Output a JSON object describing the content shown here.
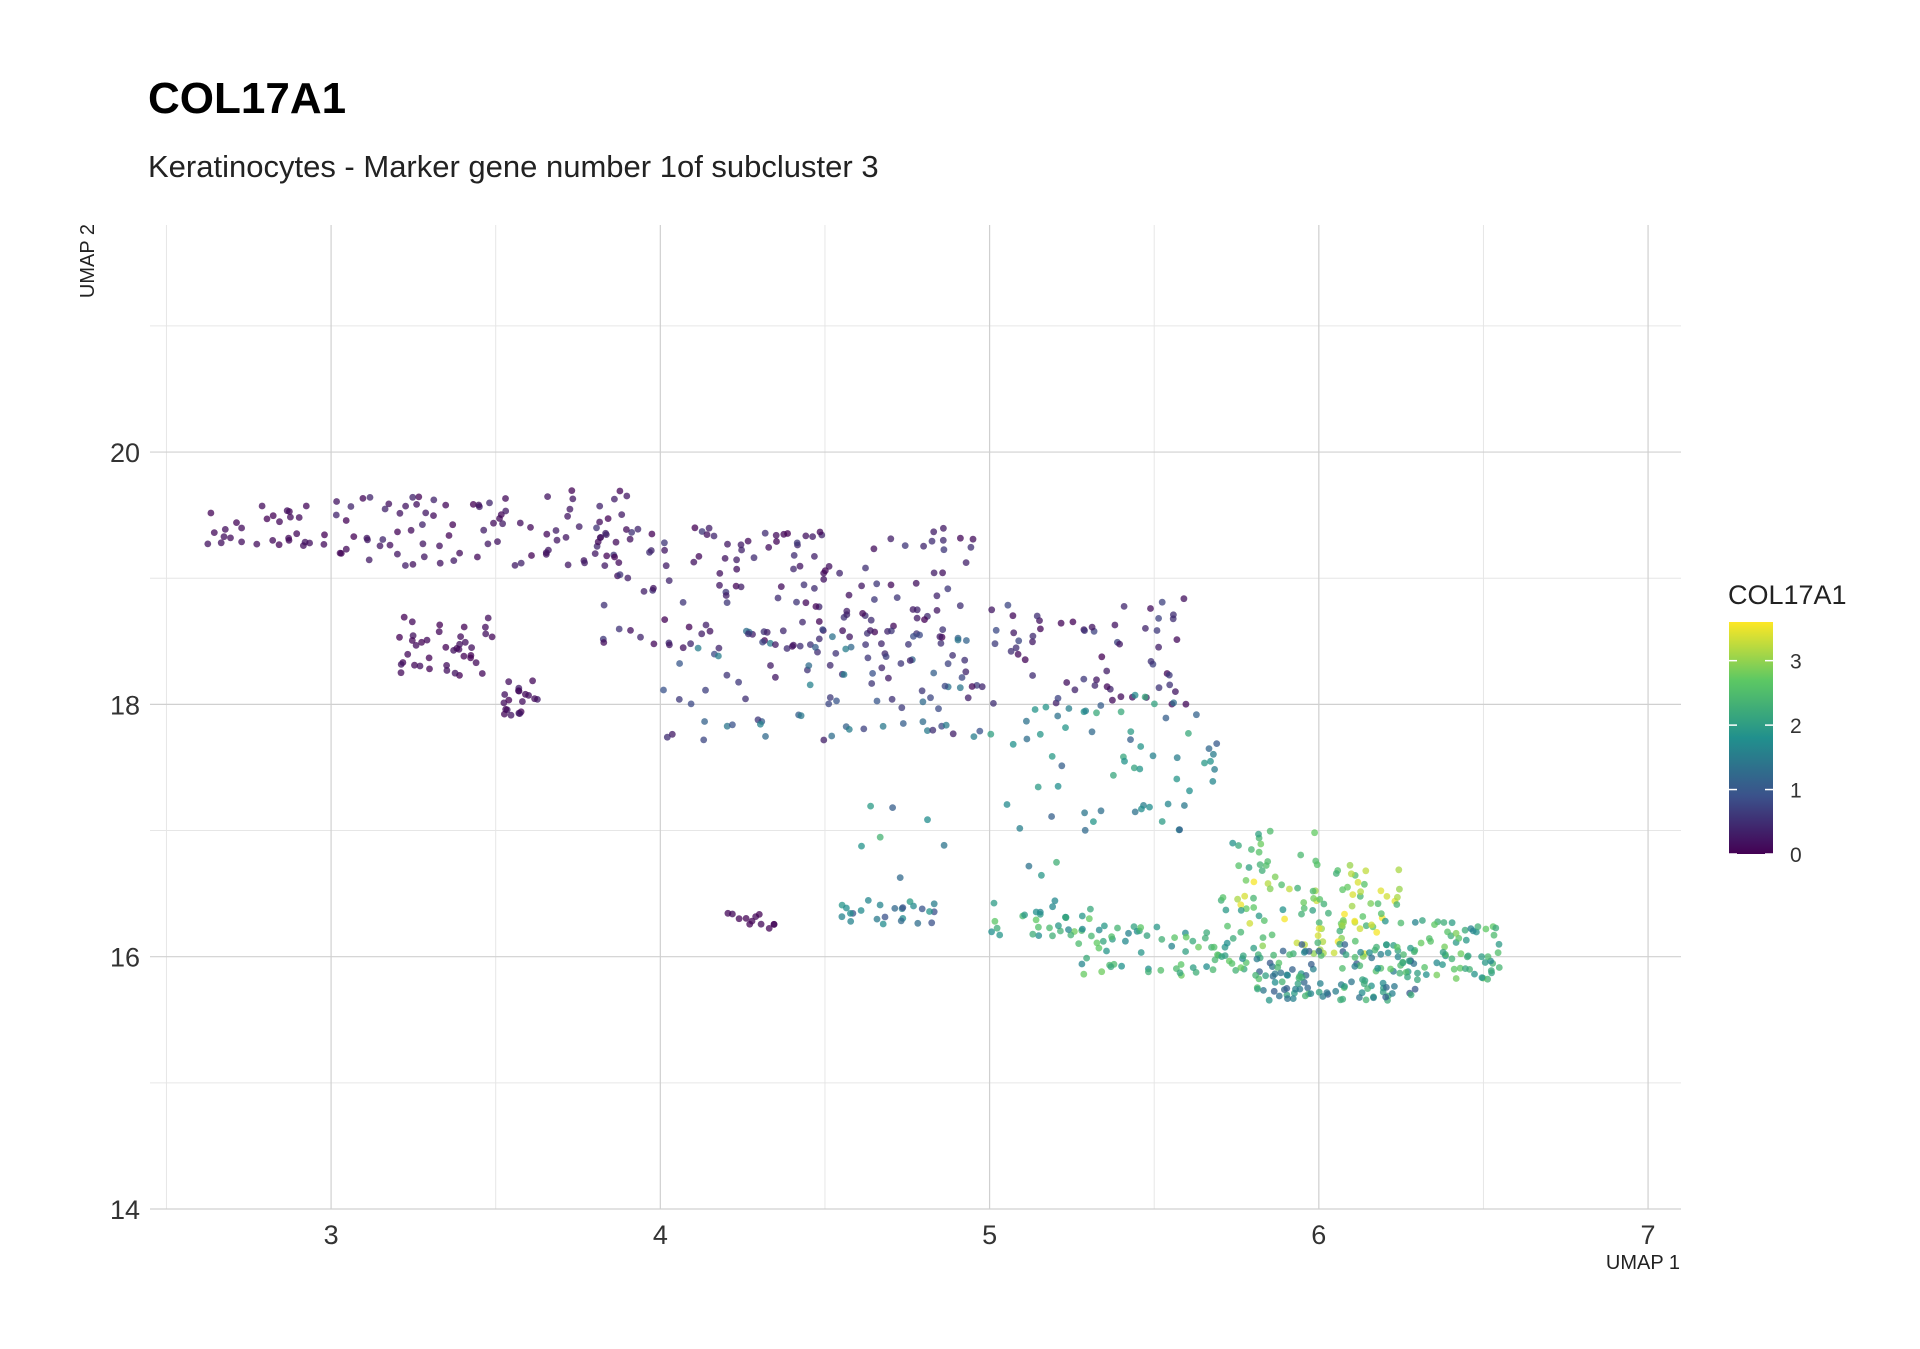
{
  "chart_data": {
    "type": "scatter",
    "title": "COL17A1",
    "subtitle": "Keratinocytes - Marker gene number 1of subcluster 3",
    "xlabel": "UMAP 1",
    "ylabel": "UMAP 2",
    "xlim": [
      2.45,
      7.1
    ],
    "ylim": [
      14,
      21.8
    ],
    "x_ticks": [
      3,
      4,
      5,
      6,
      7
    ],
    "y_ticks": [
      14,
      16,
      18,
      20
    ],
    "grid": true,
    "legend": {
      "title": "COL17A1",
      "position": "right",
      "ticks": [
        0,
        1,
        2,
        3
      ],
      "range": [
        0,
        3.6
      ],
      "colorscale": [
        "#440154",
        "#3b528b",
        "#21908d",
        "#5dc863",
        "#fde725"
      ]
    },
    "generator": {
      "seed": 17,
      "clusters": [
        {
          "n": 30,
          "x": [
            2.6,
            3.0
          ],
          "y": [
            19.25,
            19.6
          ],
          "expr": [
            0,
            0.2
          ]
        },
        {
          "n": 90,
          "x": [
            3.0,
            3.9
          ],
          "y": [
            19.1,
            19.7
          ],
          "expr": [
            0,
            0.4
          ]
        },
        {
          "n": 160,
          "x": [
            3.8,
            4.95
          ],
          "y": [
            18.4,
            19.4
          ],
          "expr": [
            0,
            0.6
          ]
        },
        {
          "n": 40,
          "x": [
            3.2,
            3.5
          ],
          "y": [
            18.2,
            18.7
          ],
          "expr": [
            0,
            0.2
          ]
        },
        {
          "n": 20,
          "x": [
            3.5,
            3.65
          ],
          "y": [
            17.9,
            18.2
          ],
          "expr": [
            0,
            0.3
          ]
        },
        {
          "n": 90,
          "x": [
            4.0,
            5.0
          ],
          "y": [
            17.7,
            18.6
          ],
          "expr": [
            0.2,
            1.6
          ]
        },
        {
          "n": 70,
          "x": [
            4.9,
            5.6
          ],
          "y": [
            18.0,
            18.85
          ],
          "expr": [
            0,
            0.8
          ]
        },
        {
          "n": 60,
          "x": [
            5.0,
            5.7
          ],
          "y": [
            17.0,
            18.1
          ],
          "expr": [
            1.0,
            2.2
          ]
        },
        {
          "n": 12,
          "x": [
            4.2,
            4.35
          ],
          "y": [
            16.2,
            16.35
          ],
          "expr": [
            0,
            0.1
          ]
        },
        {
          "n": 25,
          "x": [
            4.55,
            4.85
          ],
          "y": [
            16.25,
            16.45
          ],
          "expr": [
            0.8,
            2.0
          ]
        },
        {
          "n": 30,
          "x": [
            5.0,
            5.35
          ],
          "y": [
            16.15,
            16.45
          ],
          "expr": [
            1.5,
            2.8
          ]
        },
        {
          "n": 70,
          "x": [
            5.25,
            5.8
          ],
          "y": [
            15.85,
            16.25
          ],
          "expr": [
            1.6,
            2.8
          ]
        },
        {
          "n": 90,
          "x": [
            5.75,
            6.25
          ],
          "y": [
            16.0,
            16.75
          ],
          "expr": [
            2.2,
            3.6
          ]
        },
        {
          "n": 120,
          "x": [
            5.8,
            6.3
          ],
          "y": [
            15.65,
            16.1
          ],
          "expr": [
            1.0,
            2.6
          ]
        },
        {
          "n": 70,
          "x": [
            6.2,
            6.55
          ],
          "y": [
            15.8,
            16.3
          ],
          "expr": [
            1.6,
            2.9
          ]
        },
        {
          "n": 25,
          "x": [
            5.7,
            6.0
          ],
          "y": [
            16.3,
            17.0
          ],
          "expr": [
            1.8,
            2.8
          ]
        },
        {
          "n": 12,
          "x": [
            4.5,
            5.3
          ],
          "y": [
            16.6,
            17.2
          ],
          "expr": [
            1.0,
            2.4
          ]
        }
      ]
    }
  }
}
